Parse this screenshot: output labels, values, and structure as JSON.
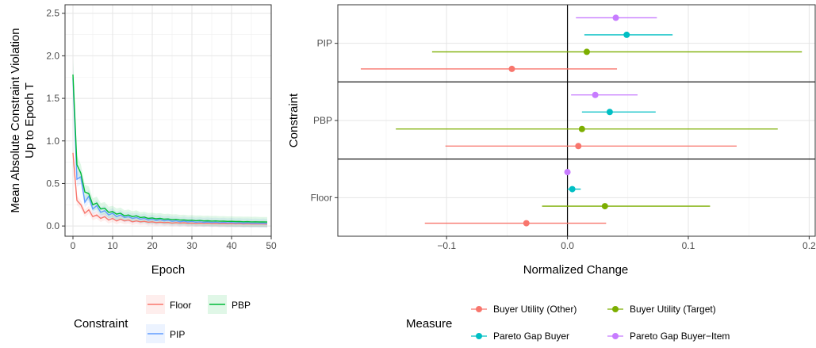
{
  "chart_data": [
    {
      "type": "line",
      "ylabel_lines": [
        "Mean Absolute Constraint Violation",
        "Up to Epoch T"
      ],
      "xlabel": "Epoch",
      "xlim": [
        -2,
        50
      ],
      "ylim": [
        -0.12,
        2.6
      ],
      "x_ticks": [
        0,
        10,
        20,
        30,
        40,
        50
      ],
      "y_ticks": [
        0.0,
        0.5,
        1.0,
        1.5,
        2.0,
        2.5
      ],
      "y_tick_labels": [
        "0.0",
        "0.5",
        "1.0",
        "1.5",
        "2.0",
        "2.5"
      ],
      "grid": true,
      "legend": {
        "title": "Constraint",
        "placement": "bottom",
        "entries": [
          "Floor",
          "PBP",
          "PIP"
        ]
      },
      "series": [
        {
          "name": "Floor",
          "color": "#F8766D",
          "x": [
            0,
            1,
            2,
            3,
            4,
            5,
            6,
            7,
            8,
            9,
            10,
            11,
            12,
            13,
            14,
            15,
            16,
            17,
            18,
            19,
            20,
            21,
            22,
            23,
            24,
            25,
            26,
            27,
            28,
            29,
            30,
            31,
            32,
            33,
            34,
            35,
            36,
            37,
            38,
            39,
            40,
            41,
            42,
            43,
            44,
            45,
            46,
            47,
            48,
            49
          ],
          "y": [
            0.86,
            0.3,
            0.25,
            0.15,
            0.19,
            0.11,
            0.13,
            0.09,
            0.11,
            0.07,
            0.09,
            0.06,
            0.08,
            0.06,
            0.07,
            0.05,
            0.06,
            0.05,
            0.055,
            0.045,
            0.05,
            0.04,
            0.045,
            0.04,
            0.042,
            0.035,
            0.04,
            0.035,
            0.038,
            0.032,
            0.035,
            0.03,
            0.033,
            0.03,
            0.032,
            0.028,
            0.03,
            0.027,
            0.029,
            0.026,
            0.028,
            0.025,
            0.027,
            0.024,
            0.026,
            0.023,
            0.025,
            0.023,
            0.024,
            0.022
          ],
          "band": 0.15
        },
        {
          "name": "PIP",
          "color": "#619CFF",
          "x": [
            0,
            1,
            2,
            3,
            4,
            5,
            6,
            7,
            8,
            9,
            10,
            11,
            12,
            13,
            14,
            15,
            16,
            17,
            18,
            19,
            20,
            21,
            22,
            23,
            24,
            25,
            26,
            27,
            28,
            29,
            30,
            31,
            32,
            33,
            34,
            35,
            36,
            37,
            38,
            39,
            40,
            41,
            42,
            43,
            44,
            45,
            46,
            47,
            48,
            49
          ],
          "y": [
            1.74,
            0.55,
            0.58,
            0.28,
            0.35,
            0.2,
            0.24,
            0.16,
            0.18,
            0.13,
            0.15,
            0.11,
            0.13,
            0.1,
            0.11,
            0.09,
            0.1,
            0.08,
            0.09,
            0.07,
            0.08,
            0.065,
            0.075,
            0.06,
            0.068,
            0.055,
            0.062,
            0.05,
            0.058,
            0.048,
            0.054,
            0.045,
            0.05,
            0.043,
            0.048,
            0.041,
            0.045,
            0.039,
            0.043,
            0.037,
            0.041,
            0.036,
            0.039,
            0.034,
            0.037,
            0.033,
            0.035,
            0.032,
            0.034,
            0.031
          ],
          "band": 0.2
        },
        {
          "name": "PBP",
          "color": "#00BA38",
          "x": [
            0,
            1,
            2,
            3,
            4,
            5,
            6,
            7,
            8,
            9,
            10,
            11,
            12,
            13,
            14,
            15,
            16,
            17,
            18,
            19,
            20,
            21,
            22,
            23,
            24,
            25,
            26,
            27,
            28,
            29,
            30,
            31,
            32,
            33,
            34,
            35,
            36,
            37,
            38,
            39,
            40,
            41,
            42,
            43,
            44,
            45,
            46,
            47,
            48,
            49
          ],
          "y": [
            1.78,
            0.72,
            0.62,
            0.4,
            0.38,
            0.25,
            0.27,
            0.2,
            0.21,
            0.16,
            0.17,
            0.14,
            0.15,
            0.12,
            0.13,
            0.11,
            0.12,
            0.1,
            0.105,
            0.09,
            0.095,
            0.085,
            0.09,
            0.08,
            0.083,
            0.075,
            0.078,
            0.07,
            0.072,
            0.066,
            0.068,
            0.063,
            0.065,
            0.06,
            0.062,
            0.058,
            0.06,
            0.056,
            0.057,
            0.054,
            0.055,
            0.052,
            0.053,
            0.05,
            0.051,
            0.049,
            0.05,
            0.048,
            0.048,
            0.047
          ],
          "band": 0.22
        }
      ]
    },
    {
      "type": "scatter",
      "subtype": "point-range",
      "xlabel": "Normalized Change",
      "ylabel": "Constraint",
      "xlim": [
        -0.19,
        0.205
      ],
      "x_ticks": [
        -0.1,
        0.0,
        0.1,
        0.2
      ],
      "x_tick_labels": [
        "−0.1",
        "0.0",
        "0.1",
        "0.2"
      ],
      "categories": [
        "PIP",
        "PBP",
        "Floor"
      ],
      "grid": true,
      "legend": {
        "title": "Measure",
        "placement": "bottom",
        "entries": [
          "Buyer Utility (Other)",
          "Buyer Utility (Target)",
          "Pareto Gap Buyer",
          "Pareto Gap Buyer−Item"
        ]
      },
      "series": [
        {
          "name": "Buyer Utility (Other)",
          "color": "#F8766D",
          "points": [
            {
              "category": "PIP",
              "estimate": -0.046,
              "low": -0.171,
              "high": 0.041
            },
            {
              "category": "PBP",
              "estimate": 0.009,
              "low": -0.101,
              "high": 0.14
            },
            {
              "category": "Floor",
              "estimate": -0.034,
              "low": -0.118,
              "high": 0.032
            }
          ]
        },
        {
          "name": "Buyer Utility (Target)",
          "color": "#7CAE00",
          "points": [
            {
              "category": "PIP",
              "estimate": 0.016,
              "low": -0.112,
              "high": 0.194
            },
            {
              "category": "PBP",
              "estimate": 0.012,
              "low": -0.142,
              "high": 0.174
            },
            {
              "category": "Floor",
              "estimate": 0.031,
              "low": -0.021,
              "high": 0.118
            }
          ]
        },
        {
          "name": "Pareto Gap Buyer",
          "color": "#00BFC4",
          "points": [
            {
              "category": "PIP",
              "estimate": 0.049,
              "low": 0.014,
              "high": 0.087
            },
            {
              "category": "PBP",
              "estimate": 0.035,
              "low": 0.012,
              "high": 0.073
            },
            {
              "category": "Floor",
              "estimate": 0.004,
              "low": 0.0,
              "high": 0.011
            }
          ]
        },
        {
          "name": "Pareto Gap Buyer−Item",
          "color": "#C77CFF",
          "points": [
            {
              "category": "PIP",
              "estimate": 0.04,
              "low": 0.007,
              "high": 0.074
            },
            {
              "category": "PBP",
              "estimate": 0.023,
              "low": 0.003,
              "high": 0.058
            },
            {
              "category": "Floor",
              "estimate": 0.0,
              "low": 0.0,
              "high": 0.0
            }
          ]
        }
      ]
    }
  ]
}
